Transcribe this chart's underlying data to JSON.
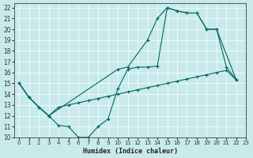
{
  "xlabel": "Humidex (Indice chaleur)",
  "bg_color": "#c8eaea",
  "line_color": "#006666",
  "xlim": [
    -0.5,
    23
  ],
  "ylim": [
    10,
    22.4
  ],
  "xticks": [
    0,
    1,
    2,
    3,
    4,
    5,
    6,
    7,
    8,
    9,
    10,
    11,
    12,
    13,
    14,
    15,
    16,
    17,
    18,
    19,
    20,
    21,
    22,
    23
  ],
  "yticks": [
    10,
    11,
    12,
    13,
    14,
    15,
    16,
    17,
    18,
    19,
    20,
    21,
    22
  ],
  "upper_curve_x": [
    0,
    1,
    2,
    3,
    10,
    11,
    13,
    14,
    15,
    16,
    17,
    18,
    19,
    20,
    22
  ],
  "upper_curve_y": [
    15.0,
    13.7,
    12.8,
    12.0,
    16.3,
    16.5,
    19.0,
    21.0,
    22.0,
    21.7,
    21.5,
    21.5,
    20.0,
    20.0,
    15.3
  ],
  "lower_wavy_x": [
    0,
    1,
    2,
    3,
    4,
    5,
    6,
    7,
    8,
    9,
    10,
    11,
    12,
    13,
    14,
    15,
    16,
    17,
    18,
    19,
    20,
    21,
    22
  ],
  "lower_wavy_y": [
    15.0,
    13.7,
    12.8,
    12.0,
    11.1,
    11.0,
    10.0,
    10.0,
    11.0,
    11.7,
    14.5,
    16.3,
    16.5,
    16.5,
    16.6,
    22.0,
    21.7,
    21.5,
    21.5,
    20.0,
    20.0,
    16.5,
    15.3
  ],
  "diag_x": [
    0,
    1,
    2,
    3,
    4,
    5,
    6,
    7,
    8,
    9,
    10,
    11,
    12,
    13,
    14,
    15,
    16,
    17,
    18,
    19,
    20,
    21,
    22
  ],
  "diag_y": [
    15.0,
    13.7,
    12.8,
    12.0,
    12.8,
    13.0,
    13.2,
    13.4,
    13.6,
    13.8,
    14.0,
    14.2,
    14.4,
    14.6,
    14.8,
    15.0,
    15.2,
    15.4,
    15.6,
    15.8,
    16.0,
    16.2,
    15.3
  ]
}
